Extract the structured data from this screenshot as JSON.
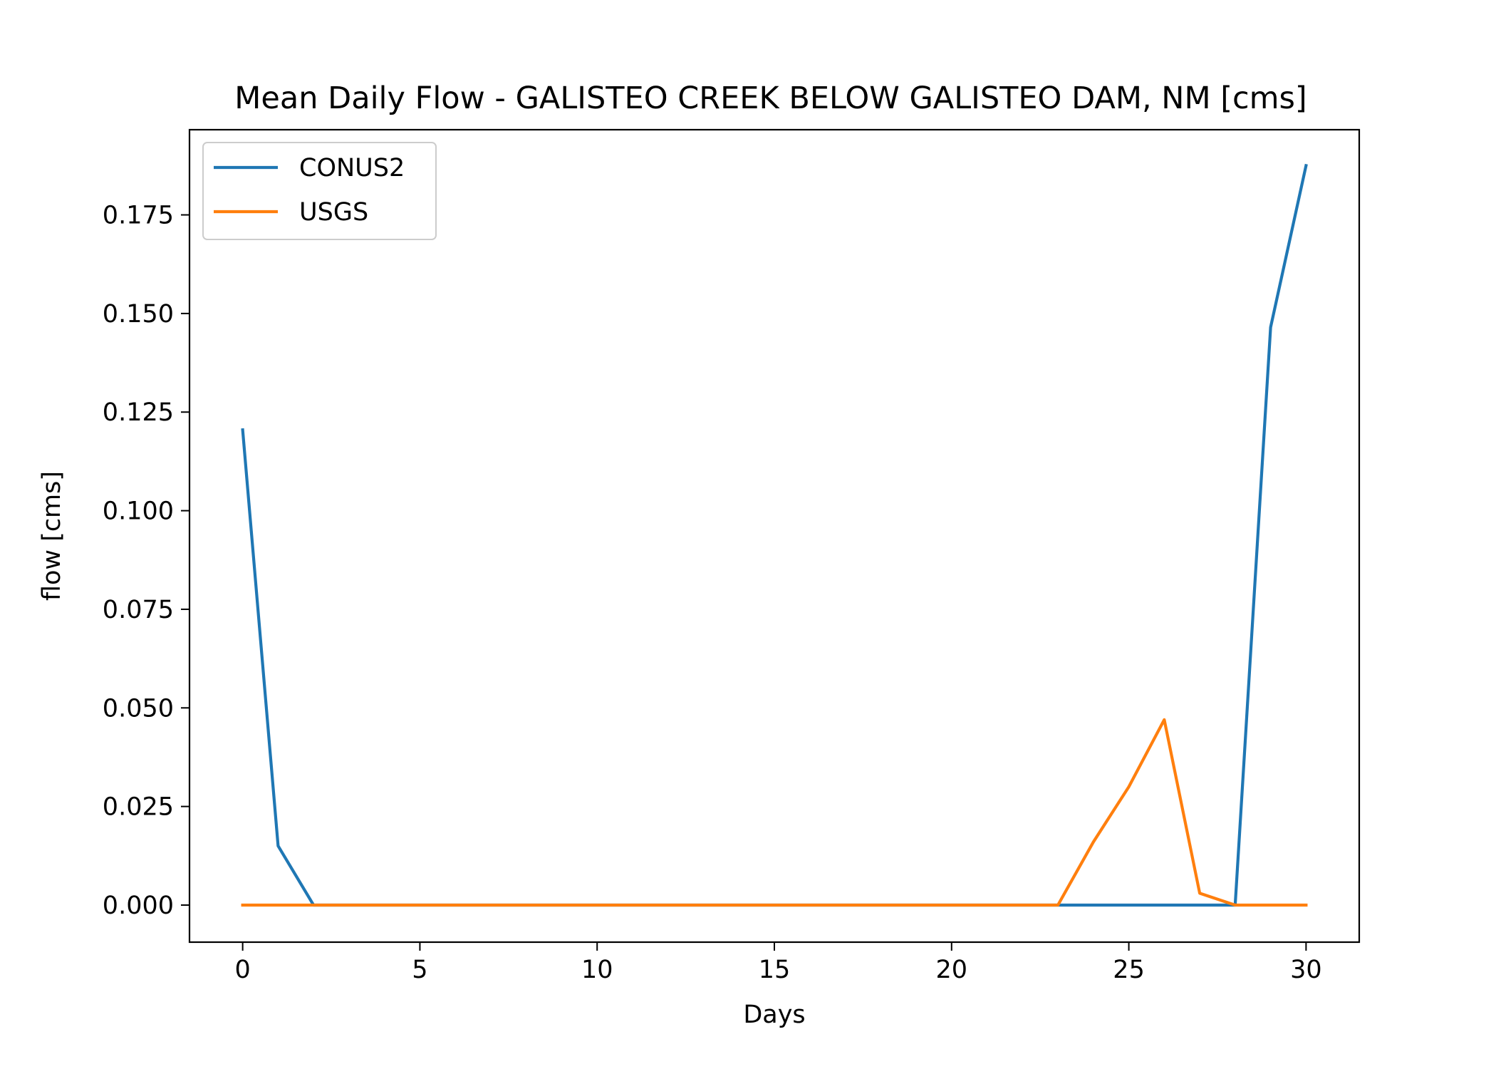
{
  "chart_data": {
    "type": "line",
    "title": "Mean Daily Flow - GALISTEO CREEK BELOW GALISTEO DAM, NM [cms]",
    "xlabel": "Days",
    "ylabel": "flow [cms]",
    "xlim": [
      -1.5,
      31.5
    ],
    "ylim": [
      -0.0094,
      0.1966
    ],
    "xticks": [
      0,
      5,
      10,
      15,
      20,
      25,
      30
    ],
    "yticks": [
      0.0,
      0.025,
      0.05,
      0.075,
      0.1,
      0.125,
      0.15,
      0.175
    ],
    "ytick_labels": [
      "0.000",
      "0.025",
      "0.050",
      "0.075",
      "0.100",
      "0.125",
      "0.150",
      "0.175"
    ],
    "grid": false,
    "legend_position": "upper left",
    "x": [
      0,
      1,
      2,
      3,
      4,
      5,
      6,
      7,
      8,
      9,
      10,
      11,
      12,
      13,
      14,
      15,
      16,
      17,
      18,
      19,
      20,
      21,
      22,
      23,
      24,
      25,
      26,
      27,
      28,
      29,
      30
    ],
    "series": [
      {
        "name": "CONUS2",
        "color": "#1f77b4",
        "values": [
          0.1205,
          0.015,
          0,
          0,
          0,
          0,
          0,
          0,
          0,
          0,
          0,
          0,
          0,
          0,
          0,
          0,
          0,
          0,
          0,
          0,
          0,
          0,
          0,
          0,
          0,
          0,
          0,
          0,
          0,
          0.1465,
          0.1875
        ]
      },
      {
        "name": "USGS",
        "color": "#ff7f0e",
        "values": [
          0,
          0,
          0,
          0,
          0,
          0,
          0,
          0,
          0,
          0,
          0,
          0,
          0,
          0,
          0,
          0,
          0,
          0,
          0,
          0,
          0,
          0,
          0,
          0,
          0.016,
          0.03,
          0.047,
          0.003,
          0,
          0,
          0
        ]
      }
    ]
  }
}
